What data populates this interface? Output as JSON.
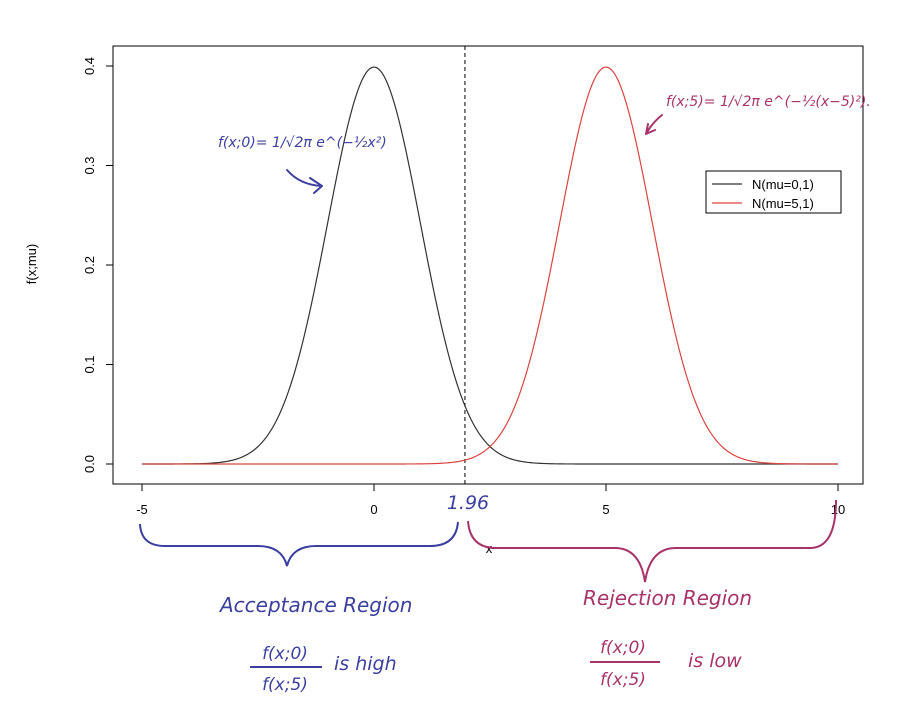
{
  "chart_data": {
    "type": "line",
    "xlabel": "x",
    "ylabel": "f(x;mu)",
    "xlim": [
      -5,
      10
    ],
    "ylim": [
      0,
      0.4
    ],
    "x_ticks": [
      "-5",
      "0",
      "5",
      "10"
    ],
    "y_ticks": [
      "0.0",
      "0.1",
      "0.2",
      "0.3",
      "0.4"
    ],
    "series": [
      {
        "name": "N(mu=0,1)",
        "mean": 0,
        "sd": 1,
        "color": "#333333"
      },
      {
        "name": "N(mu=5,1)",
        "mean": 5,
        "sd": 1,
        "color": "#d9443f"
      }
    ],
    "threshold": 1.96,
    "grid": false,
    "legend_position": "top-right"
  },
  "annotations": {
    "threshold_label": "1.96",
    "formula_left": "f(x;0)= 1/√2π e^(−½x²)",
    "formula_right": "f(x;5)= 1/√2π e^(−½(x−5)²).",
    "acceptance_label": "Acceptance Region",
    "acceptance_ratio_num": "f(x;0)",
    "acceptance_ratio_den": "f(x;5)",
    "acceptance_note": "is high",
    "rejection_label": "Rejection Region",
    "rejection_ratio_num": "f(x;0)",
    "rejection_ratio_den": "f(x;5)",
    "rejection_note": "is low"
  },
  "colors": {
    "blue_ink": "#3b3f9e",
    "magenta_ink": "#a8336a"
  }
}
